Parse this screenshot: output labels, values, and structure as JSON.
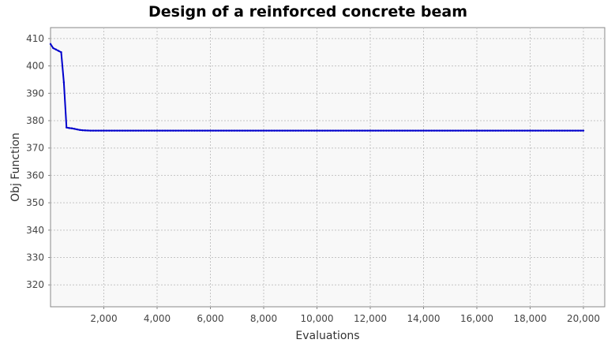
{
  "chart_data": {
    "type": "line",
    "title": "Design of a reinforced concrete beam",
    "xlabel": "Evaluations",
    "ylabel": "Obj Function",
    "xlim": [
      0,
      20800
    ],
    "ylim": [
      312,
      414
    ],
    "grid": true,
    "legend": "none",
    "x_ticks": [
      2000,
      4000,
      6000,
      8000,
      10000,
      12000,
      14000,
      16000,
      18000,
      20000
    ],
    "x_tick_labels": [
      "2,000",
      "4,000",
      "6,000",
      "8,000",
      "10,000",
      "12,000",
      "14,000",
      "16,000",
      "18,000",
      "20,000"
    ],
    "y_ticks": [
      320,
      330,
      340,
      350,
      360,
      370,
      380,
      390,
      400,
      410
    ],
    "y_tick_labels": [
      "320",
      "330",
      "340",
      "350",
      "360",
      "370",
      "380",
      "390",
      "400",
      "410"
    ],
    "series": [
      {
        "color": "#0000cc",
        "x": [
          0,
          100,
          200,
          300,
          400,
          500,
          600,
          700,
          800,
          900,
          1000,
          1100,
          1200,
          1300,
          1400,
          1500,
          20000
        ],
        "y": [
          408,
          406.5,
          406,
          405.5,
          405,
          394,
          377.5,
          377.3,
          377.2,
          377.0,
          376.8,
          376.6,
          376.5,
          376.45,
          376.4,
          376.35,
          376.35
        ]
      }
    ]
  }
}
